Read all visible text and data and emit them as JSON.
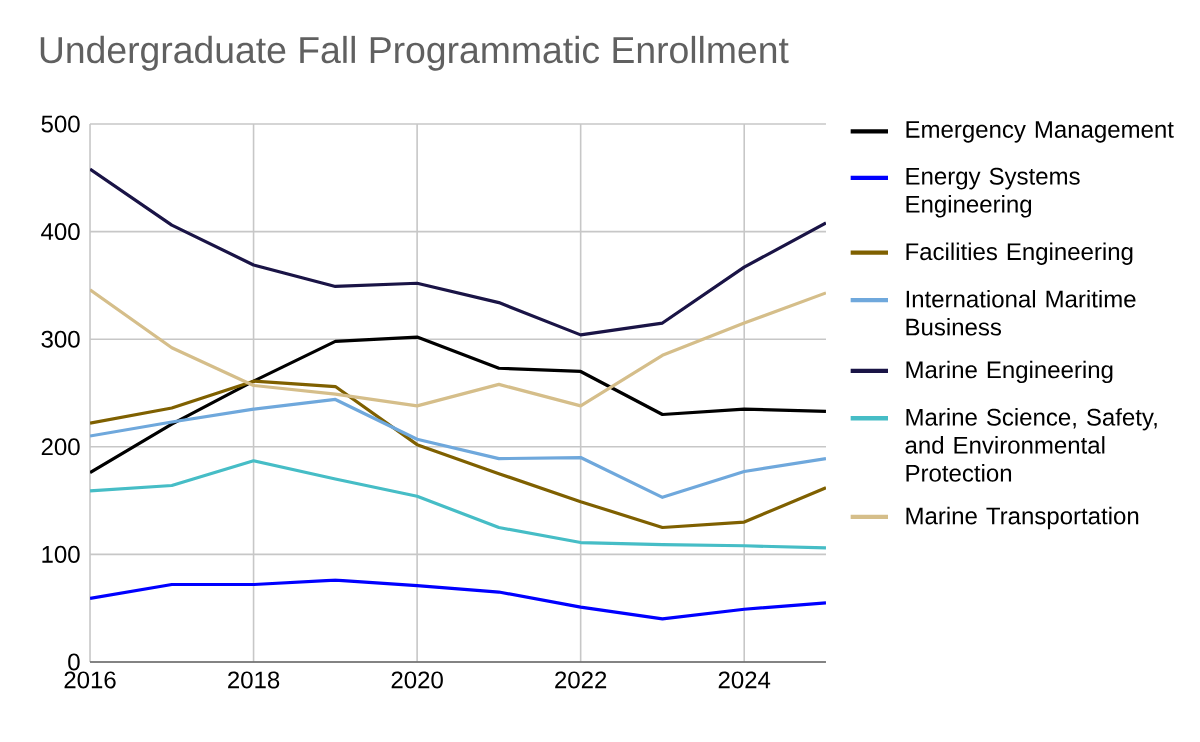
{
  "chart_data": {
    "type": "line",
    "title": "Undergraduate Fall Programmatic Enrollment",
    "x": [
      2016,
      2017,
      2018,
      2019,
      2020,
      2021,
      2022,
      2023,
      2024,
      2025
    ],
    "xlim": [
      2016,
      2025
    ],
    "xticks": [
      2016,
      2018,
      2020,
      2022,
      2024
    ],
    "ylim": [
      0,
      500
    ],
    "yticks": [
      0,
      100,
      200,
      300,
      400,
      500
    ],
    "grid": true,
    "legend": "right",
    "series": [
      {
        "name": "Emergency Management",
        "color": "#000000",
        "values": [
          176,
          221,
          261,
          298,
          302,
          273,
          270,
          230,
          235,
          233
        ]
      },
      {
        "name": "Energy Systems Engineering",
        "color": "#0000ff",
        "values": [
          59,
          72,
          72,
          76,
          71,
          65,
          51,
          40,
          49,
          55
        ]
      },
      {
        "name": "Facilities Engineering",
        "color": "#7f6000",
        "values": [
          222,
          236,
          261,
          256,
          202,
          175,
          149,
          125,
          130,
          162
        ]
      },
      {
        "name": "International Maritime Business",
        "color": "#6fa8dc",
        "values": [
          210,
          223,
          235,
          244,
          207,
          189,
          190,
          153,
          177,
          189
        ]
      },
      {
        "name": "Marine Engineering",
        "color": "#1a1446",
        "values": [
          458,
          406,
          369,
          349,
          352,
          334,
          304,
          315,
          367,
          408
        ]
      },
      {
        "name": "Marine Science, Safety, and Environmental Protection",
        "color": "#46bdc6",
        "values": [
          159,
          164,
          187,
          170,
          154,
          125,
          111,
          109,
          108,
          106
        ]
      },
      {
        "name": "Marine Transportation",
        "color": "#d5be8a",
        "values": [
          346,
          292,
          257,
          249,
          238,
          258,
          238,
          285,
          315,
          343
        ]
      }
    ]
  }
}
